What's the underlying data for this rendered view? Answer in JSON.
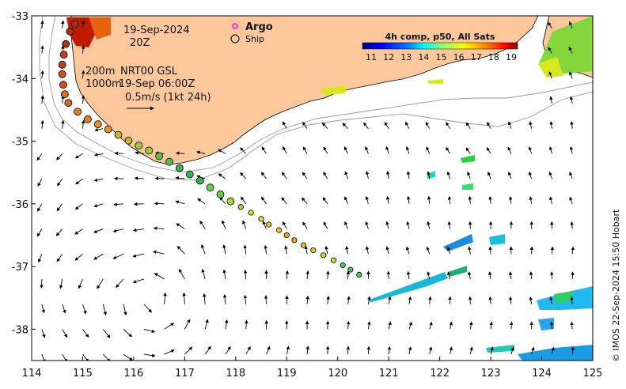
{
  "map": {
    "date": "19-Sep-2024",
    "time": "20Z",
    "depth_contours": "200m",
    "depth_contours_2": "1000m",
    "product": "NRT00 GSL",
    "valid_time": "19-Sep 06:00Z",
    "scale_label": "0.5m/s (1kt 24h)",
    "legend_argo": "Argo",
    "legend_ship": "Ship",
    "colorbar_title": "4h comp, p50, All Sats",
    "colorbar_ticks": [
      "11",
      "12",
      "13",
      "14",
      "15",
      "16",
      "17",
      "18",
      "19"
    ],
    "credit": "© IMOS 22-Sep-2024 15:50 Hobart",
    "x_ticks": [
      "114",
      "115",
      "116",
      "117",
      "118",
      "119",
      "120",
      "121",
      "122",
      "123",
      "124",
      "125"
    ],
    "y_ticks": [
      "-33",
      "-34",
      "-35",
      "-36",
      "-37",
      "-38"
    ],
    "colors": {
      "land": "#fcc89b",
      "argo": "#ff00ff",
      "ship": "#000000",
      "colorbar": [
        "#00007f",
        "#0000ff",
        "#007fff",
        "#00ffff",
        "#7fff7f",
        "#ffff00",
        "#ff7f00",
        "#ff0000",
        "#7f0000"
      ]
    }
  },
  "chart_data": {
    "type": "scatter",
    "title": "",
    "xlabel": "",
    "ylabel": "",
    "xlim": [
      114,
      125
    ],
    "ylim": [
      -38.5,
      -33
    ],
    "series": [
      {
        "values": [
          {
            "x": 114.85,
            "y": -33.13
          },
          {
            "x": 114.75,
            "y": -33.25
          },
          {
            "x": 114.67,
            "y": -33.45
          },
          {
            "x": 114.63,
            "y": -33.62
          },
          {
            "x": 114.6,
            "y": -33.78
          },
          {
            "x": 114.6,
            "y": -33.93
          },
          {
            "x": 114.62,
            "y": -34.1
          },
          {
            "x": 114.65,
            "y": -34.25
          },
          {
            "x": 114.72,
            "y": -34.39
          },
          {
            "x": 114.9,
            "y": -34.53
          },
          {
            "x": 115.1,
            "y": -34.65
          },
          {
            "x": 115.3,
            "y": -34.73
          },
          {
            "x": 115.5,
            "y": -34.81
          },
          {
            "x": 115.7,
            "y": -34.9
          },
          {
            "x": 115.9,
            "y": -34.99
          },
          {
            "x": 116.1,
            "y": -35.07
          },
          {
            "x": 116.3,
            "y": -35.15
          },
          {
            "x": 116.5,
            "y": -35.24
          },
          {
            "x": 116.7,
            "y": -35.33
          },
          {
            "x": 116.9,
            "y": -35.43
          },
          {
            "x": 117.1,
            "y": -35.53
          },
          {
            "x": 117.3,
            "y": -35.63
          },
          {
            "x": 117.5,
            "y": -35.74
          },
          {
            "x": 117.7,
            "y": -35.85
          },
          {
            "x": 117.9,
            "y": -35.96
          },
          {
            "x": 118.1,
            "y": -36.05
          },
          {
            "x": 118.3,
            "y": -36.14
          },
          {
            "x": 118.5,
            "y": -36.24
          },
          {
            "x": 118.65,
            "y": -36.33
          },
          {
            "x": 118.85,
            "y": -36.42
          },
          {
            "x": 119.0,
            "y": -36.5
          },
          {
            "x": 119.15,
            "y": -36.58
          },
          {
            "x": 119.33,
            "y": -36.66
          },
          {
            "x": 119.52,
            "y": -36.74
          },
          {
            "x": 119.72,
            "y": -36.82
          },
          {
            "x": 119.92,
            "y": -36.9
          },
          {
            "x": 120.1,
            "y": -36.98
          },
          {
            "x": 120.25,
            "y": -37.05
          },
          {
            "x": 120.42,
            "y": -37.13
          }
        ]
      }
    ]
  }
}
